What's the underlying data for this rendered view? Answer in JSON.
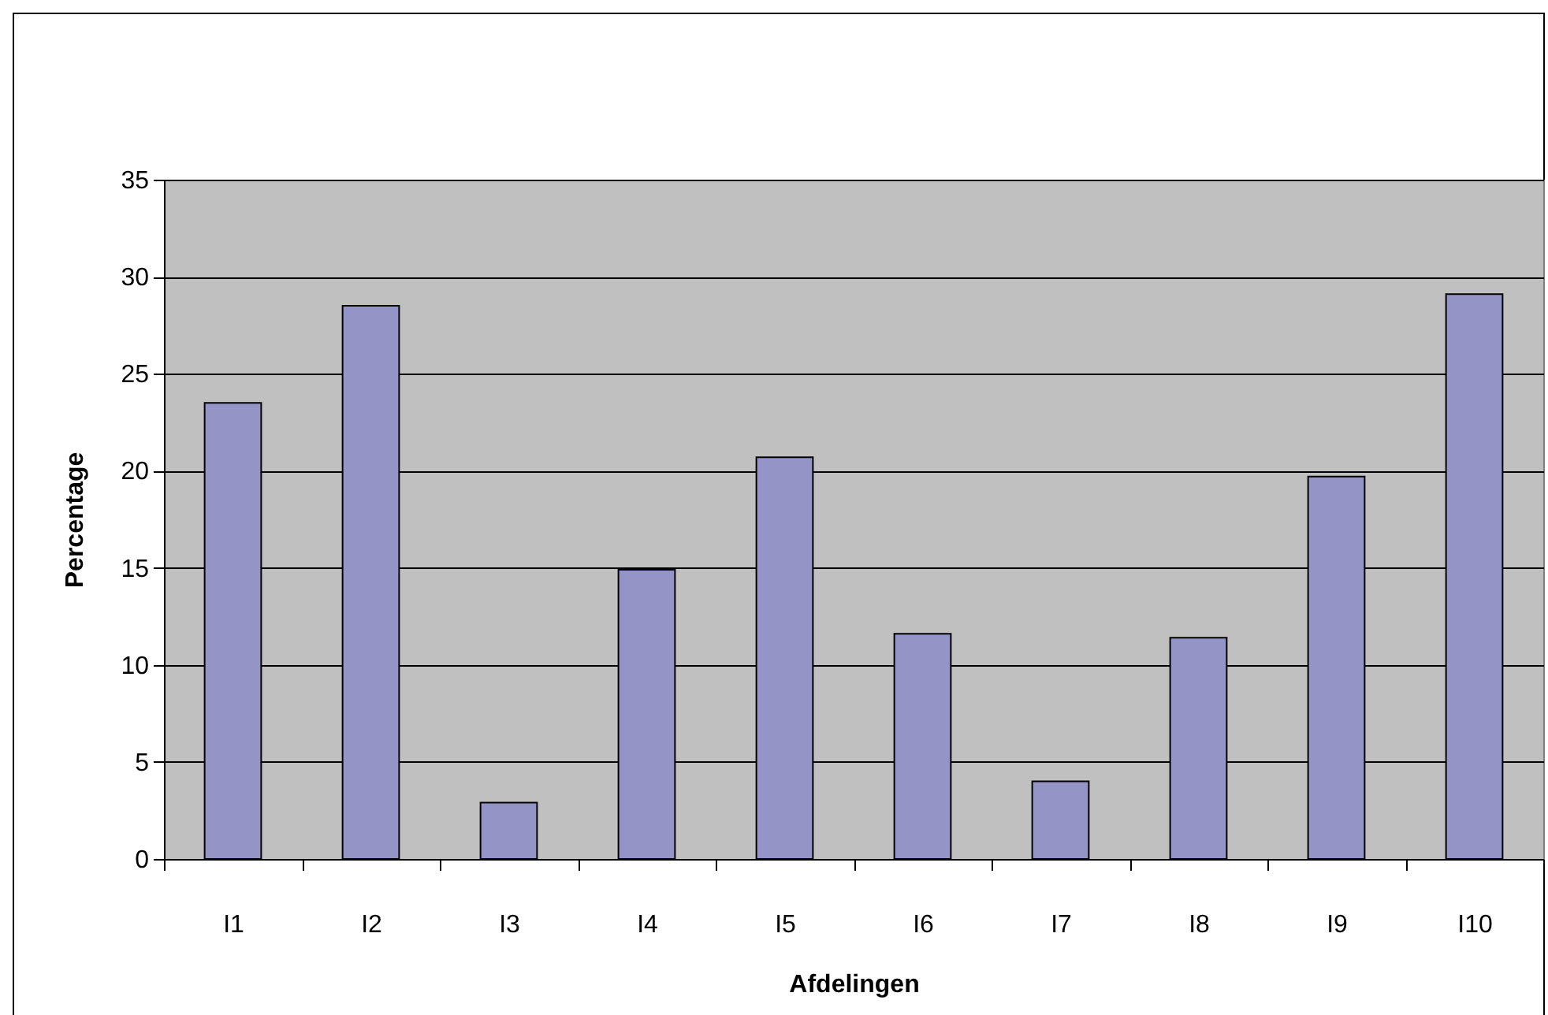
{
  "chart_data": {
    "type": "bar",
    "xlabel": "Afdelingen",
    "ylabel": "Percentage",
    "categories": [
      "I1",
      "I2",
      "I3",
      "I4",
      "I5",
      "I6",
      "I7",
      "I8",
      "I9",
      "I10"
    ],
    "values": [
      23.5,
      28.5,
      2.9,
      14.9,
      20.7,
      11.6,
      4.0,
      11.4,
      19.7,
      29.1
    ],
    "color": "#9494c6",
    "ylim": [
      0,
      35
    ],
    "yticks": [
      0,
      5,
      10,
      15,
      20,
      25,
      30,
      35
    ],
    "grid": "y"
  }
}
